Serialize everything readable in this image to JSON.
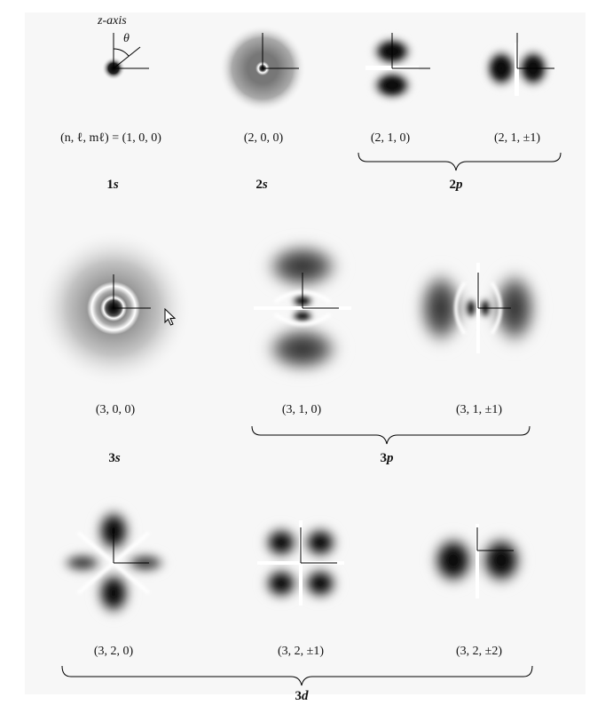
{
  "axis_labels": {
    "z_axis": "z-axis",
    "theta": "θ"
  },
  "orbitals": [
    {
      "id": "1s",
      "label": "(n, ℓ, mℓ) = (1, 0, 0)"
    },
    {
      "id": "2s",
      "label": "(2, 0, 0)"
    },
    {
      "id": "2p0",
      "label": "(2, 1, 0)"
    },
    {
      "id": "2p1",
      "label": "(2, 1, ±1)"
    },
    {
      "id": "3s",
      "label": "(3, 0, 0)"
    },
    {
      "id": "3p0",
      "label": "(3, 1, 0)"
    },
    {
      "id": "3p1",
      "label": "(3, 1, ±1)"
    },
    {
      "id": "3d0",
      "label": "(3, 2, 0)"
    },
    {
      "id": "3d1",
      "label": "(3, 2, ±1)"
    },
    {
      "id": "3d2",
      "label": "(3, 2, ±2)"
    }
  ],
  "groups": [
    {
      "id": "1s",
      "num": "1",
      "letter": "s"
    },
    {
      "id": "2s",
      "num": "2",
      "letter": "s"
    },
    {
      "id": "2p",
      "num": "2",
      "letter": "p"
    },
    {
      "id": "3s",
      "num": "3",
      "letter": "s"
    },
    {
      "id": "3p",
      "num": "3",
      "letter": "p"
    },
    {
      "id": "3d",
      "num": "3",
      "letter": "d"
    }
  ]
}
